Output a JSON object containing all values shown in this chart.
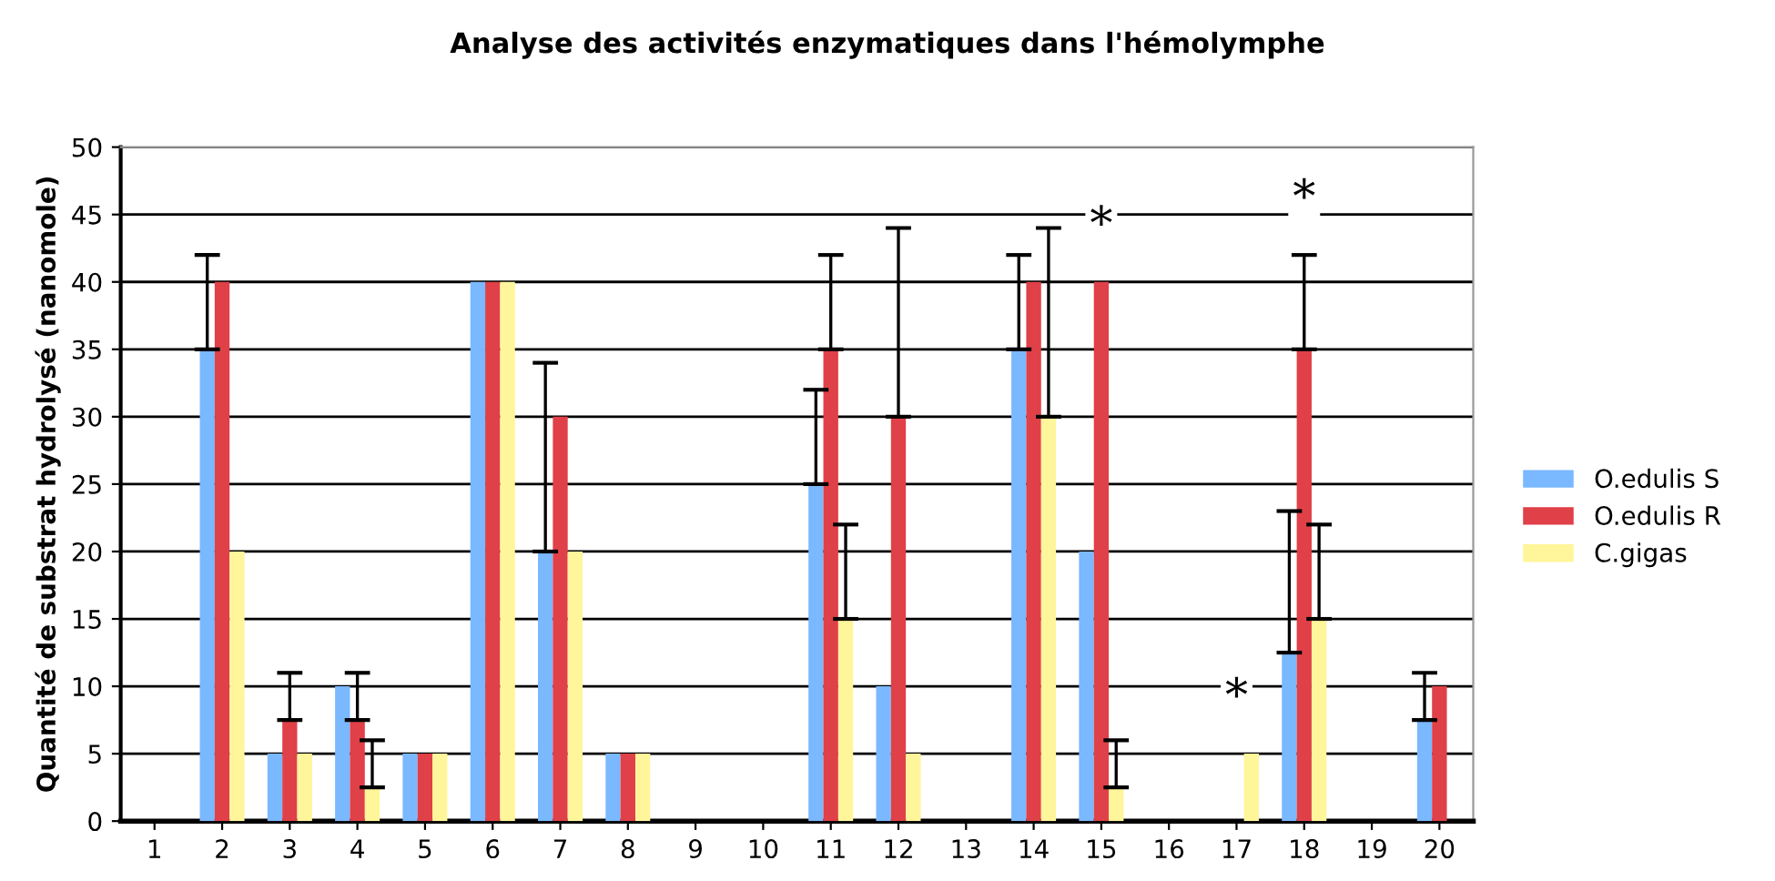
{
  "chart_data": {
    "type": "bar",
    "title": "Analyse des activités enzymatiques dans l'hémolymphe",
    "ylabel": "Quantité de substrat hydrolysé (nanomole)",
    "categories": [
      "1",
      "2",
      "3",
      "4",
      "5",
      "6",
      "7",
      "8",
      "9",
      "10",
      "11",
      "12",
      "13",
      "14",
      "15",
      "16",
      "17",
      "18",
      "19",
      "20"
    ],
    "series": [
      {
        "name": "O.edulis S",
        "color": "#7ab8ff",
        "values": [
          null,
          35,
          5,
          10,
          5,
          40,
          20,
          5,
          null,
          null,
          25,
          10,
          null,
          35,
          20,
          null,
          null,
          12.5,
          null,
          7.5
        ],
        "errors": [
          null,
          [
            35,
            42
          ],
          null,
          null,
          null,
          null,
          [
            20,
            34
          ],
          null,
          null,
          null,
          [
            25,
            32
          ],
          null,
          null,
          [
            35,
            42
          ],
          null,
          null,
          null,
          [
            12.5,
            23
          ],
          null,
          [
            7.5,
            11
          ]
        ]
      },
      {
        "name": "O.edulis R",
        "color": "#e04048",
        "values": [
          null,
          40,
          7.5,
          7.5,
          5,
          40,
          30,
          5,
          null,
          null,
          35,
          30,
          null,
          40,
          40,
          null,
          null,
          35,
          null,
          10
        ],
        "errors": [
          null,
          null,
          [
            7.5,
            11
          ],
          [
            7.5,
            11
          ],
          null,
          null,
          null,
          null,
          null,
          null,
          [
            35,
            42
          ],
          [
            30,
            44
          ],
          null,
          null,
          null,
          null,
          null,
          [
            35,
            42
          ],
          null,
          null
        ]
      },
      {
        "name": "C.gigas",
        "color": "#fff59a",
        "values": [
          null,
          20,
          5,
          2.5,
          5,
          40,
          20,
          5,
          null,
          null,
          15,
          5,
          null,
          30,
          2.5,
          null,
          5,
          15,
          null,
          null
        ],
        "errors": [
          null,
          null,
          null,
          [
            2.5,
            6
          ],
          null,
          null,
          null,
          null,
          null,
          null,
          [
            15,
            22
          ],
          null,
          null,
          [
            30,
            44
          ],
          [
            2.5,
            6
          ],
          null,
          null,
          [
            15,
            22
          ],
          null,
          null
        ]
      }
    ],
    "ylim": [
      0,
      50
    ],
    "yticks": [
      0,
      5,
      10,
      15,
      20,
      25,
      30,
      35,
      40,
      45,
      50
    ],
    "grid": "y",
    "legend": "right",
    "annotations": [
      {
        "text": "*",
        "x": "15",
        "y": 40
      },
      {
        "text": "*",
        "x": "17",
        "y": 5
      },
      {
        "text": "*",
        "x": "18",
        "y": 42
      }
    ]
  }
}
